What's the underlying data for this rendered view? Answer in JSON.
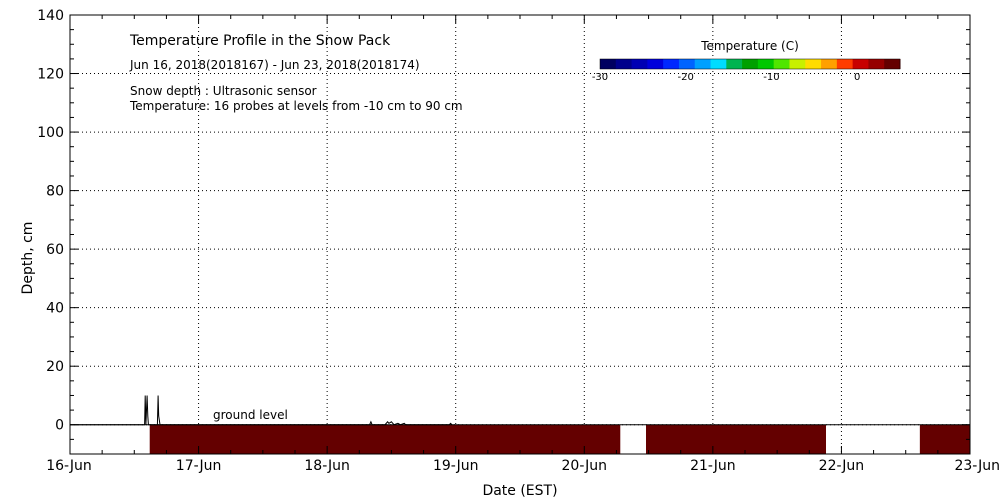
{
  "chart_data": {
    "type": "heatmap",
    "title": "Temperature Profile in the Snow Pack",
    "date_range": "Jun 16, 2018(2018167) - Jun 23, 2018(2018174)",
    "notes": [
      "Snow depth : Ultrasonic sensor",
      "Temperature: 16 probes at levels from -10 cm to 90 cm"
    ],
    "xlabel": "Date (EST)",
    "ylabel": "Depth, cm",
    "x_ticks": [
      "16-Jun",
      "17-Jun",
      "18-Jun",
      "19-Jun",
      "20-Jun",
      "21-Jun",
      "22-Jun",
      "23-Jun"
    ],
    "xlim": [
      0,
      7
    ],
    "y_ticks": [
      0,
      20,
      40,
      60,
      80,
      100,
      120,
      140
    ],
    "ylim": [
      -10,
      140
    ],
    "grid": true,
    "ground_level": {
      "y": 0,
      "label": "ground level"
    },
    "colorbar": {
      "label": "Temperature (C)",
      "ticks": [
        -30,
        -20,
        -10,
        0
      ],
      "range": [
        -30,
        5
      ],
      "colors": [
        "#000060",
        "#00008c",
        "#0000b4",
        "#0000dc",
        "#0028ff",
        "#0064ff",
        "#00a0ff",
        "#00dcff",
        "#00b450",
        "#00a000",
        "#00c800",
        "#50e600",
        "#c8f000",
        "#ffdc00",
        "#ffa000",
        "#ff3c00",
        "#c80000",
        "#960000",
        "#640000"
      ]
    },
    "temperature_segments": [
      {
        "x_start": 0.62,
        "x_end": 4.28,
        "color": "#640000"
      },
      {
        "x_start": 4.48,
        "x_end": 5.88,
        "color": "#640000"
      },
      {
        "x_start": 6.61,
        "x_end": 7.0,
        "color": "#640000"
      }
    ],
    "snow_depth": {
      "x": [
        0.0,
        0.58,
        0.585,
        0.59,
        0.6,
        0.605,
        0.61,
        0.62,
        0.66,
        0.68,
        0.685,
        0.69,
        0.7,
        0.71,
        0.75,
        0.78,
        2.33,
        2.34,
        2.35,
        2.45,
        2.47,
        2.48,
        2.5,
        2.52,
        2.55,
        2.57,
        2.6,
        2.61,
        2.95,
        2.96,
        2.97
      ],
      "y": [
        0,
        0,
        10,
        0,
        10,
        3,
        0,
        0,
        0,
        0,
        10,
        3,
        0,
        0,
        0,
        0,
        0,
        1,
        0,
        0,
        1,
        0.5,
        1,
        0,
        0.5,
        0,
        0.5,
        0,
        0,
        0.5,
        0
      ]
    }
  }
}
